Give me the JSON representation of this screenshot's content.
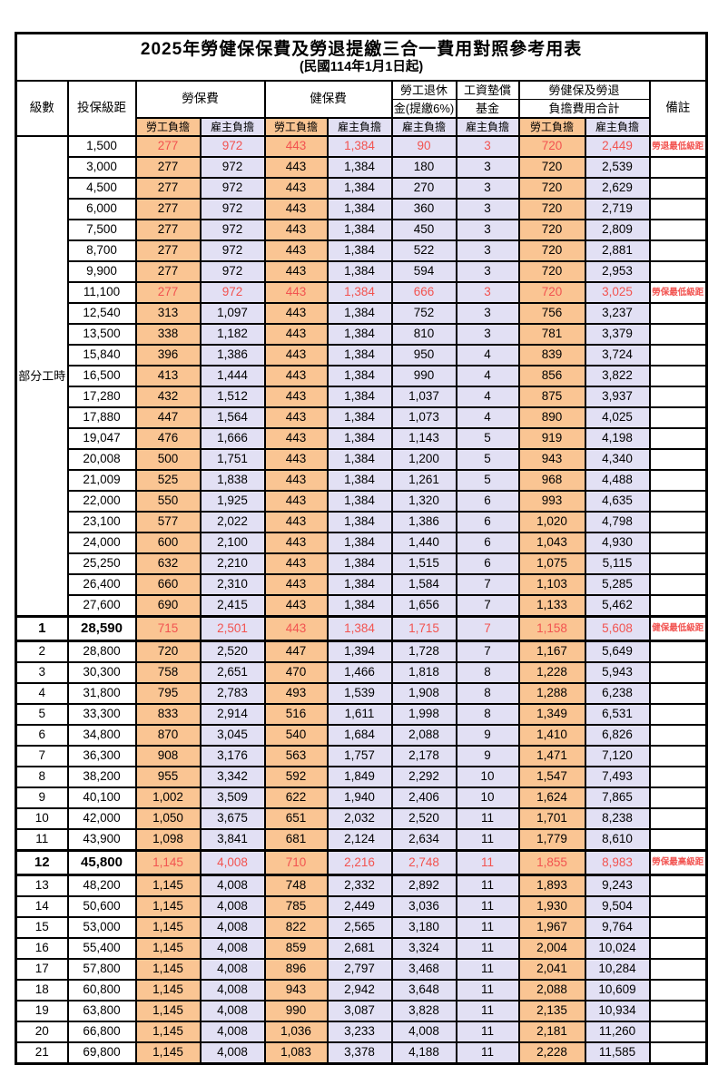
{
  "title": "2025年勞健保保費及勞退提繳三合一費用對照參考用表",
  "subtitle": "(民國114年1月1日起)",
  "colors": {
    "employee_fill": "#FAC593",
    "employer_fill": "#E2E0F4",
    "highlight_text": "#F25350",
    "border": "#000000"
  },
  "header": {
    "level": "級數",
    "bracket": "投保級距",
    "labor_insurance": "勞保費",
    "health_insurance": "健保費",
    "pension_line1": "勞工退休",
    "pension_line2": "金(提繳6%)",
    "wage_fund_line1": "工資墊償",
    "wage_fund_line2": "基金",
    "total_line1": "勞健保及勞退",
    "total_line2": "負擔費用合計",
    "remark": "備註",
    "employee": "勞工負擔",
    "employer": "雇主負擔"
  },
  "part_time": {
    "label": "部分工時",
    "rowspan": 23
  },
  "rows": [
    {
      "level": "",
      "bracket": "1,500",
      "li_emp": "277",
      "li_er": "972",
      "hi_emp": "443",
      "hi_er": "1,384",
      "pension": "90",
      "fund": "3",
      "tot_emp": "720",
      "tot_er": "2,449",
      "remark": "勞退最低級距",
      "hl": true,
      "em": false
    },
    {
      "level": "",
      "bracket": "3,000",
      "li_emp": "277",
      "li_er": "972",
      "hi_emp": "443",
      "hi_er": "1,384",
      "pension": "180",
      "fund": "3",
      "tot_emp": "720",
      "tot_er": "2,539",
      "remark": "",
      "hl": false,
      "em": false
    },
    {
      "level": "",
      "bracket": "4,500",
      "li_emp": "277",
      "li_er": "972",
      "hi_emp": "443",
      "hi_er": "1,384",
      "pension": "270",
      "fund": "3",
      "tot_emp": "720",
      "tot_er": "2,629",
      "remark": "",
      "hl": false,
      "em": false
    },
    {
      "level": "",
      "bracket": "6,000",
      "li_emp": "277",
      "li_er": "972",
      "hi_emp": "443",
      "hi_er": "1,384",
      "pension": "360",
      "fund": "3",
      "tot_emp": "720",
      "tot_er": "2,719",
      "remark": "",
      "hl": false,
      "em": false
    },
    {
      "level": "",
      "bracket": "7,500",
      "li_emp": "277",
      "li_er": "972",
      "hi_emp": "443",
      "hi_er": "1,384",
      "pension": "450",
      "fund": "3",
      "tot_emp": "720",
      "tot_er": "2,809",
      "remark": "",
      "hl": false,
      "em": false
    },
    {
      "level": "",
      "bracket": "8,700",
      "li_emp": "277",
      "li_er": "972",
      "hi_emp": "443",
      "hi_er": "1,384",
      "pension": "522",
      "fund": "3",
      "tot_emp": "720",
      "tot_er": "2,881",
      "remark": "",
      "hl": false,
      "em": false
    },
    {
      "level": "",
      "bracket": "9,900",
      "li_emp": "277",
      "li_er": "972",
      "hi_emp": "443",
      "hi_er": "1,384",
      "pension": "594",
      "fund": "3",
      "tot_emp": "720",
      "tot_er": "2,953",
      "remark": "",
      "hl": false,
      "em": false
    },
    {
      "level": "",
      "bracket": "11,100",
      "li_emp": "277",
      "li_er": "972",
      "hi_emp": "443",
      "hi_er": "1,384",
      "pension": "666",
      "fund": "3",
      "tot_emp": "720",
      "tot_er": "3,025",
      "remark": "勞保最低級距",
      "hl": true,
      "em": false
    },
    {
      "level": "",
      "bracket": "12,540",
      "li_emp": "313",
      "li_er": "1,097",
      "hi_emp": "443",
      "hi_er": "1,384",
      "pension": "752",
      "fund": "3",
      "tot_emp": "756",
      "tot_er": "3,237",
      "remark": "",
      "hl": false,
      "em": false
    },
    {
      "level": "",
      "bracket": "13,500",
      "li_emp": "338",
      "li_er": "1,182",
      "hi_emp": "443",
      "hi_er": "1,384",
      "pension": "810",
      "fund": "3",
      "tot_emp": "781",
      "tot_er": "3,379",
      "remark": "",
      "hl": false,
      "em": false
    },
    {
      "level": "",
      "bracket": "15,840",
      "li_emp": "396",
      "li_er": "1,386",
      "hi_emp": "443",
      "hi_er": "1,384",
      "pension": "950",
      "fund": "4",
      "tot_emp": "839",
      "tot_er": "3,724",
      "remark": "",
      "hl": false,
      "em": false
    },
    {
      "level": "",
      "bracket": "16,500",
      "li_emp": "413",
      "li_er": "1,444",
      "hi_emp": "443",
      "hi_er": "1,384",
      "pension": "990",
      "fund": "4",
      "tot_emp": "856",
      "tot_er": "3,822",
      "remark": "",
      "hl": false,
      "em": false
    },
    {
      "level": "",
      "bracket": "17,280",
      "li_emp": "432",
      "li_er": "1,512",
      "hi_emp": "443",
      "hi_er": "1,384",
      "pension": "1,037",
      "fund": "4",
      "tot_emp": "875",
      "tot_er": "3,937",
      "remark": "",
      "hl": false,
      "em": false
    },
    {
      "level": "",
      "bracket": "17,880",
      "li_emp": "447",
      "li_er": "1,564",
      "hi_emp": "443",
      "hi_er": "1,384",
      "pension": "1,073",
      "fund": "4",
      "tot_emp": "890",
      "tot_er": "4,025",
      "remark": "",
      "hl": false,
      "em": false
    },
    {
      "level": "",
      "bracket": "19,047",
      "li_emp": "476",
      "li_er": "1,666",
      "hi_emp": "443",
      "hi_er": "1,384",
      "pension": "1,143",
      "fund": "5",
      "tot_emp": "919",
      "tot_er": "4,198",
      "remark": "",
      "hl": false,
      "em": false
    },
    {
      "level": "",
      "bracket": "20,008",
      "li_emp": "500",
      "li_er": "1,751",
      "hi_emp": "443",
      "hi_er": "1,384",
      "pension": "1,200",
      "fund": "5",
      "tot_emp": "943",
      "tot_er": "4,340",
      "remark": "",
      "hl": false,
      "em": false
    },
    {
      "level": "",
      "bracket": "21,009",
      "li_emp": "525",
      "li_er": "1,838",
      "hi_emp": "443",
      "hi_er": "1,384",
      "pension": "1,261",
      "fund": "5",
      "tot_emp": "968",
      "tot_er": "4,488",
      "remark": "",
      "hl": false,
      "em": false
    },
    {
      "level": "",
      "bracket": "22,000",
      "li_emp": "550",
      "li_er": "1,925",
      "hi_emp": "443",
      "hi_er": "1,384",
      "pension": "1,320",
      "fund": "6",
      "tot_emp": "993",
      "tot_er": "4,635",
      "remark": "",
      "hl": false,
      "em": false
    },
    {
      "level": "",
      "bracket": "23,100",
      "li_emp": "577",
      "li_er": "2,022",
      "hi_emp": "443",
      "hi_er": "1,384",
      "pension": "1,386",
      "fund": "6",
      "tot_emp": "1,020",
      "tot_er": "4,798",
      "remark": "",
      "hl": false,
      "em": false
    },
    {
      "level": "",
      "bracket": "24,000",
      "li_emp": "600",
      "li_er": "2,100",
      "hi_emp": "443",
      "hi_er": "1,384",
      "pension": "1,440",
      "fund": "6",
      "tot_emp": "1,043",
      "tot_er": "4,930",
      "remark": "",
      "hl": false,
      "em": false
    },
    {
      "level": "",
      "bracket": "25,250",
      "li_emp": "632",
      "li_er": "2,210",
      "hi_emp": "443",
      "hi_er": "1,384",
      "pension": "1,515",
      "fund": "6",
      "tot_emp": "1,075",
      "tot_er": "5,115",
      "remark": "",
      "hl": false,
      "em": false
    },
    {
      "level": "",
      "bracket": "26,400",
      "li_emp": "660",
      "li_er": "2,310",
      "hi_emp": "443",
      "hi_er": "1,384",
      "pension": "1,584",
      "fund": "7",
      "tot_emp": "1,103",
      "tot_er": "5,285",
      "remark": "",
      "hl": false,
      "em": false
    },
    {
      "level": "",
      "bracket": "27,600",
      "li_emp": "690",
      "li_er": "2,415",
      "hi_emp": "443",
      "hi_er": "1,384",
      "pension": "1,656",
      "fund": "7",
      "tot_emp": "1,133",
      "tot_er": "5,462",
      "remark": "",
      "hl": false,
      "em": false
    },
    {
      "level": "1",
      "bracket": "28,590",
      "li_emp": "715",
      "li_er": "2,501",
      "hi_emp": "443",
      "hi_er": "1,384",
      "pension": "1,715",
      "fund": "7",
      "tot_emp": "1,158",
      "tot_er": "5,608",
      "remark": "健保最低級距",
      "hl": true,
      "em": true
    },
    {
      "level": "2",
      "bracket": "28,800",
      "li_emp": "720",
      "li_er": "2,520",
      "hi_emp": "447",
      "hi_er": "1,394",
      "pension": "1,728",
      "fund": "7",
      "tot_emp": "1,167",
      "tot_er": "5,649",
      "remark": "",
      "hl": false,
      "em": false
    },
    {
      "level": "3",
      "bracket": "30,300",
      "li_emp": "758",
      "li_er": "2,651",
      "hi_emp": "470",
      "hi_er": "1,466",
      "pension": "1,818",
      "fund": "8",
      "tot_emp": "1,228",
      "tot_er": "5,943",
      "remark": "",
      "hl": false,
      "em": false
    },
    {
      "level": "4",
      "bracket": "31,800",
      "li_emp": "795",
      "li_er": "2,783",
      "hi_emp": "493",
      "hi_er": "1,539",
      "pension": "1,908",
      "fund": "8",
      "tot_emp": "1,288",
      "tot_er": "6,238",
      "remark": "",
      "hl": false,
      "em": false
    },
    {
      "level": "5",
      "bracket": "33,300",
      "li_emp": "833",
      "li_er": "2,914",
      "hi_emp": "516",
      "hi_er": "1,611",
      "pension": "1,998",
      "fund": "8",
      "tot_emp": "1,349",
      "tot_er": "6,531",
      "remark": "",
      "hl": false,
      "em": false
    },
    {
      "level": "6",
      "bracket": "34,800",
      "li_emp": "870",
      "li_er": "3,045",
      "hi_emp": "540",
      "hi_er": "1,684",
      "pension": "2,088",
      "fund": "9",
      "tot_emp": "1,410",
      "tot_er": "6,826",
      "remark": "",
      "hl": false,
      "em": false
    },
    {
      "level": "7",
      "bracket": "36,300",
      "li_emp": "908",
      "li_er": "3,176",
      "hi_emp": "563",
      "hi_er": "1,757",
      "pension": "2,178",
      "fund": "9",
      "tot_emp": "1,471",
      "tot_er": "7,120",
      "remark": "",
      "hl": false,
      "em": false
    },
    {
      "level": "8",
      "bracket": "38,200",
      "li_emp": "955",
      "li_er": "3,342",
      "hi_emp": "592",
      "hi_er": "1,849",
      "pension": "2,292",
      "fund": "10",
      "tot_emp": "1,547",
      "tot_er": "7,493",
      "remark": "",
      "hl": false,
      "em": false
    },
    {
      "level": "9",
      "bracket": "40,100",
      "li_emp": "1,002",
      "li_er": "3,509",
      "hi_emp": "622",
      "hi_er": "1,940",
      "pension": "2,406",
      "fund": "10",
      "tot_emp": "1,624",
      "tot_er": "7,865",
      "remark": "",
      "hl": false,
      "em": false
    },
    {
      "level": "10",
      "bracket": "42,000",
      "li_emp": "1,050",
      "li_er": "3,675",
      "hi_emp": "651",
      "hi_er": "2,032",
      "pension": "2,520",
      "fund": "11",
      "tot_emp": "1,701",
      "tot_er": "8,238",
      "remark": "",
      "hl": false,
      "em": false
    },
    {
      "level": "11",
      "bracket": "43,900",
      "li_emp": "1,098",
      "li_er": "3,841",
      "hi_emp": "681",
      "hi_er": "2,124",
      "pension": "2,634",
      "fund": "11",
      "tot_emp": "1,779",
      "tot_er": "8,610",
      "remark": "",
      "hl": false,
      "em": false
    },
    {
      "level": "12",
      "bracket": "45,800",
      "li_emp": "1,145",
      "li_er": "4,008",
      "hi_emp": "710",
      "hi_er": "2,216",
      "pension": "2,748",
      "fund": "11",
      "tot_emp": "1,855",
      "tot_er": "8,983",
      "remark": "勞保最高級距",
      "hl": true,
      "em": true
    },
    {
      "level": "13",
      "bracket": "48,200",
      "li_emp": "1,145",
      "li_er": "4,008",
      "hi_emp": "748",
      "hi_er": "2,332",
      "pension": "2,892",
      "fund": "11",
      "tot_emp": "1,893",
      "tot_er": "9,243",
      "remark": "",
      "hl": false,
      "em": false
    },
    {
      "level": "14",
      "bracket": "50,600",
      "li_emp": "1,145",
      "li_er": "4,008",
      "hi_emp": "785",
      "hi_er": "2,449",
      "pension": "3,036",
      "fund": "11",
      "tot_emp": "1,930",
      "tot_er": "9,504",
      "remark": "",
      "hl": false,
      "em": false
    },
    {
      "level": "15",
      "bracket": "53,000",
      "li_emp": "1,145",
      "li_er": "4,008",
      "hi_emp": "822",
      "hi_er": "2,565",
      "pension": "3,180",
      "fund": "11",
      "tot_emp": "1,967",
      "tot_er": "9,764",
      "remark": "",
      "hl": false,
      "em": false
    },
    {
      "level": "16",
      "bracket": "55,400",
      "li_emp": "1,145",
      "li_er": "4,008",
      "hi_emp": "859",
      "hi_er": "2,681",
      "pension": "3,324",
      "fund": "11",
      "tot_emp": "2,004",
      "tot_er": "10,024",
      "remark": "",
      "hl": false,
      "em": false
    },
    {
      "level": "17",
      "bracket": "57,800",
      "li_emp": "1,145",
      "li_er": "4,008",
      "hi_emp": "896",
      "hi_er": "2,797",
      "pension": "3,468",
      "fund": "11",
      "tot_emp": "2,041",
      "tot_er": "10,284",
      "remark": "",
      "hl": false,
      "em": false
    },
    {
      "level": "18",
      "bracket": "60,800",
      "li_emp": "1,145",
      "li_er": "4,008",
      "hi_emp": "943",
      "hi_er": "2,942",
      "pension": "3,648",
      "fund": "11",
      "tot_emp": "2,088",
      "tot_er": "10,609",
      "remark": "",
      "hl": false,
      "em": false
    },
    {
      "level": "19",
      "bracket": "63,800",
      "li_emp": "1,145",
      "li_er": "4,008",
      "hi_emp": "990",
      "hi_er": "3,087",
      "pension": "3,828",
      "fund": "11",
      "tot_emp": "2,135",
      "tot_er": "10,934",
      "remark": "",
      "hl": false,
      "em": false
    },
    {
      "level": "20",
      "bracket": "66,800",
      "li_emp": "1,145",
      "li_er": "4,008",
      "hi_emp": "1,036",
      "hi_er": "3,233",
      "pension": "4,008",
      "fund": "11",
      "tot_emp": "2,181",
      "tot_er": "11,260",
      "remark": "",
      "hl": false,
      "em": false
    },
    {
      "level": "21",
      "bracket": "69,800",
      "li_emp": "1,145",
      "li_er": "4,008",
      "hi_emp": "1,083",
      "hi_er": "3,378",
      "pension": "4,188",
      "fund": "11",
      "tot_emp": "2,228",
      "tot_er": "11,585",
      "remark": "",
      "hl": false,
      "em": false
    }
  ]
}
